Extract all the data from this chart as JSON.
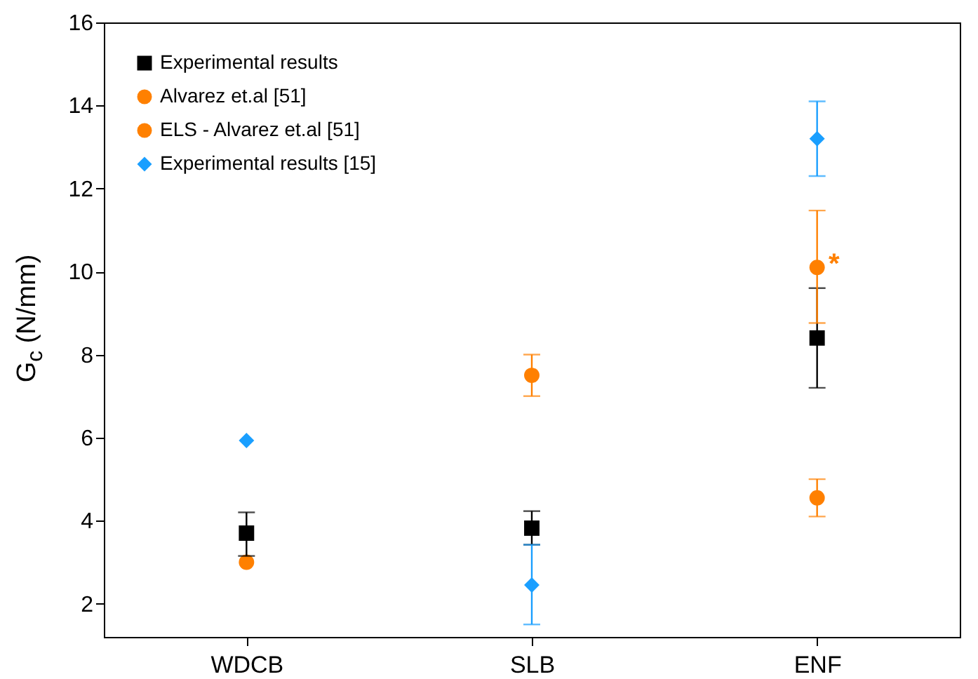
{
  "chart_data": {
    "type": "scatter",
    "ylabel": "G$_{c}$ (N/mm)",
    "categories": [
      "WDCB",
      "SLB",
      "ENF"
    ],
    "ylim": [
      1.2,
      16
    ],
    "yticks": [
      2,
      4,
      6,
      8,
      10,
      12,
      14,
      16
    ],
    "legend": "top left",
    "grid": false,
    "series": [
      {
        "name": "Experimental results",
        "color": "#000000",
        "marker": "square",
        "values": [
          3.7,
          3.82,
          8.4
        ],
        "errors": [
          [
            3.15,
            4.2
          ],
          [
            3.42,
            4.23
          ],
          [
            7.2,
            9.6
          ]
        ]
      },
      {
        "name": "Alvarez et.al [51]",
        "color": "#ff8000",
        "marker": "circle",
        "values": [
          3.0,
          7.5,
          4.55
        ],
        "errors": [
          null,
          [
            7.0,
            8.0
          ],
          [
            4.1,
            5.0
          ]
        ]
      },
      {
        "name": "ELS - Alvarez et.al [51]",
        "color": "#ff8000",
        "marker": "circle",
        "values": [
          null,
          null,
          10.1
        ],
        "errors": [
          null,
          null,
          [
            8.76,
            11.47
          ]
        ]
      },
      {
        "name": "Experimental results [15]",
        "color": "#1a9fff",
        "marker": "diamond",
        "values": [
          5.93,
          2.45,
          13.2
        ],
        "errors": [
          null,
          [
            1.5,
            3.42
          ],
          [
            12.3,
            14.1
          ]
        ]
      }
    ],
    "annotations": [
      {
        "text": "*",
        "x": "ENF",
        "y": 10.1
      }
    ]
  }
}
